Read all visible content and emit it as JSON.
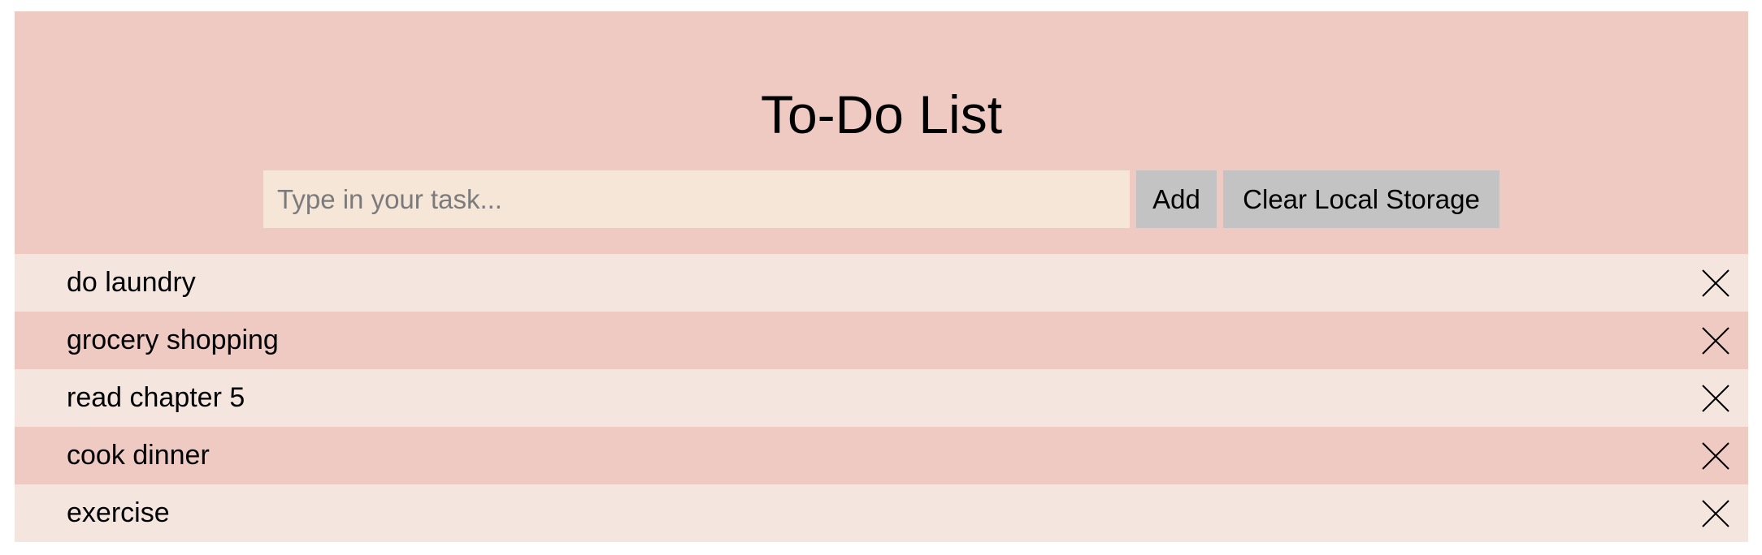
{
  "app": {
    "title": "To-Do List"
  },
  "form": {
    "input_placeholder": "Type in your task...",
    "input_value": "",
    "add_label": "Add",
    "clear_label": "Clear Local Storage"
  },
  "tasks": [
    {
      "text": "do laundry",
      "delete_icon": "close-icon"
    },
    {
      "text": "grocery shopping",
      "delete_icon": "close-icon"
    },
    {
      "text": "read chapter 5",
      "delete_icon": "close-icon"
    },
    {
      "text": "cook dinner",
      "delete_icon": "close-icon"
    },
    {
      "text": "exercise",
      "delete_icon": "close-icon"
    }
  ],
  "colors": {
    "header_bg": "#eecac3",
    "row_light": "#f5e5df",
    "row_dark": "#eecac3",
    "input_bg": "#f5e6d8",
    "button_bg": "#c3c3c3"
  }
}
